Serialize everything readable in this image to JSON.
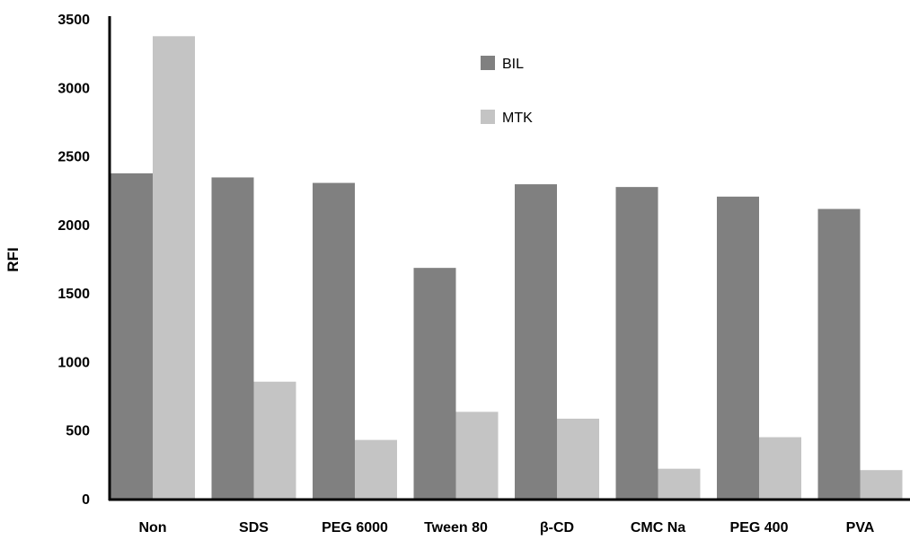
{
  "chart_data": {
    "type": "bar",
    "title": "",
    "xlabel": "",
    "ylabel": "RFI",
    "ylim": [
      0,
      3500
    ],
    "yticks": [
      0,
      500,
      1000,
      1500,
      2000,
      2500,
      3000,
      3500
    ],
    "categories": [
      "Non",
      "SDS",
      "PEG 6000",
      "Tween 80",
      "β-CD",
      "CMC Na",
      "PEG 400",
      "PVA"
    ],
    "series": [
      {
        "name": "BIL",
        "color": "#808080",
        "values": [
          2380,
          2350,
          2310,
          1690,
          2300,
          2280,
          2210,
          2120
        ]
      },
      {
        "name": "MTK",
        "color": "#c4c4c4",
        "values": [
          3380,
          860,
          435,
          640,
          590,
          225,
          455,
          215
        ]
      }
    ],
    "grid": false,
    "legend": "top-center"
  }
}
